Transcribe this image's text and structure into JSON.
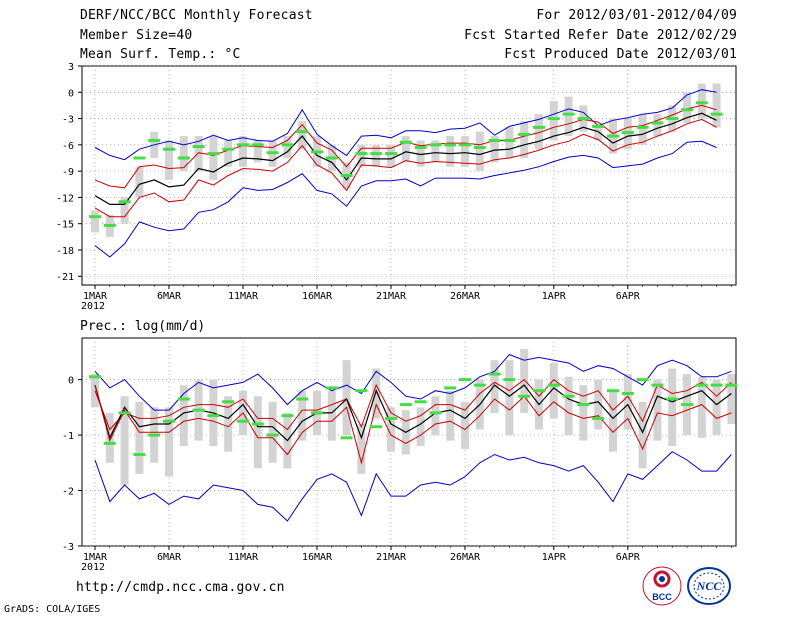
{
  "header": {
    "title": "DERF/NCC/BCC Monthly Forecast",
    "member_size": "Member Size=40",
    "variable": "Mean Surf. Temp.: °C",
    "period": "For 2012/03/01-2012/04/09",
    "start_date": "Fcst Started Refer Date 2012/02/29",
    "produced_date": "Fcst Produced Date 2012/03/01"
  },
  "footer": {
    "url": "http://cmdp.ncc.cma.gov.cn",
    "credit": "GrADS: COLA/IGES"
  },
  "logos": {
    "bcc": "BCC",
    "ncc": "NCC"
  },
  "colors": {
    "max_min": "#0000cc",
    "spread": "#cc0000",
    "mean": "#000000",
    "box": "#d3d3d3",
    "obs": "#44dd44"
  },
  "chart_data": [
    {
      "type": "line",
      "name": "temperature",
      "title": "Mean Surf. Temp.: °C",
      "ylim": [
        -22,
        3
      ],
      "yticks": [
        3,
        0,
        -3,
        -6,
        -9,
        -12,
        -15,
        -18,
        -21
      ],
      "xticks": [
        {
          "day": 1,
          "label": "1MAR"
        },
        {
          "day": 6,
          "label": "6MAR"
        },
        {
          "day": 11,
          "label": "11MAR"
        },
        {
          "day": 16,
          "label": "16MAR"
        },
        {
          "day": 21,
          "label": "21MAR"
        },
        {
          "day": 26,
          "label": "26MAR"
        },
        {
          "day": 32,
          "label": "1APR"
        },
        {
          "day": 37,
          "label": "6APR"
        }
      ],
      "year_label": "2012",
      "series": [
        {
          "name": "max",
          "values": [
            -6.3,
            -7.2,
            -7.7,
            -6.5,
            -6,
            -5.6,
            -6,
            -5.6,
            -4.9,
            -5.5,
            -5.2,
            -5.5,
            -5.6,
            -4.7,
            -2,
            -4.8,
            -6.1,
            -7.2,
            -5,
            -4.9,
            -5.2,
            -4.4,
            -4.4,
            -4.6,
            -4.2,
            -4.1,
            -3.5,
            -4.9,
            -3.9,
            -3.5,
            -3.1,
            -2.5,
            -1.9,
            -2.3,
            -3.8,
            -3.2,
            -2.9,
            -2.5,
            -2.3,
            -1.8,
            -0.3,
            0.3,
            0
          ]
        },
        {
          "name": "spread_upper",
          "values": [
            -10,
            -10.7,
            -10.9,
            -8.5,
            -8.3,
            -8.7,
            -8.6,
            -6.9,
            -7.2,
            -6.6,
            -6.1,
            -6.2,
            -6.3,
            -5.5,
            -3.7,
            -5.8,
            -6.6,
            -8.5,
            -6.4,
            -6.4,
            -6.4,
            -5.7,
            -6.1,
            -5.9,
            -5.8,
            -5.8,
            -6,
            -5.5,
            -5.5,
            -5,
            -4.6,
            -4,
            -3.6,
            -3.1,
            -3.4,
            -4.7,
            -4,
            -3.8,
            -3.2,
            -2.6,
            -1.9,
            -1.5,
            -2
          ],
          "note": "red upper band"
        },
        {
          "name": "mean",
          "values": [
            -11.8,
            -12.8,
            -12.8,
            -10.5,
            -10,
            -10.8,
            -10.6,
            -8.7,
            -9.1,
            -8.1,
            -7.5,
            -7.6,
            -7.8,
            -6.8,
            -5,
            -7.2,
            -8,
            -10,
            -7.5,
            -7.6,
            -7.6,
            -6.8,
            -7.1,
            -6.9,
            -7,
            -6.9,
            -7.1,
            -6.6,
            -6.5,
            -6,
            -5.6,
            -5,
            -4.6,
            -4,
            -4.5,
            -5.8,
            -5,
            -4.8,
            -4.1,
            -3.6,
            -2.9,
            -2.4,
            -3.2
          ]
        },
        {
          "name": "spread_lower",
          "values": [
            -13.2,
            -14.2,
            -14.2,
            -12,
            -11.5,
            -12.5,
            -12.3,
            -10,
            -10.6,
            -9.5,
            -8.7,
            -8.8,
            -9,
            -8,
            -6.1,
            -8.3,
            -9.2,
            -11.2,
            -8.3,
            -8.4,
            -8.6,
            -7.8,
            -8.1,
            -7.9,
            -8,
            -8.1,
            -8.2,
            -7.7,
            -7.5,
            -7.1,
            -6.6,
            -6,
            -5.6,
            -4.8,
            -5.4,
            -6.7,
            -6,
            -5.7,
            -5,
            -4.4,
            -3.6,
            -3.1,
            -4
          ]
        },
        {
          "name": "min",
          "values": [
            -17.5,
            -18.8,
            -17.3,
            -14.8,
            -15.4,
            -15.8,
            -15.6,
            -13.7,
            -13.4,
            -12.5,
            -10.9,
            -11.2,
            -11.1,
            -10.3,
            -9.3,
            -11.2,
            -11.6,
            -13,
            -10.7,
            -10.1,
            -10.1,
            -9.9,
            -10.7,
            -9.8,
            -9.8,
            -9.8,
            -9.9,
            -9.5,
            -9.2,
            -8.9,
            -8.5,
            -7.9,
            -7.4,
            -7.2,
            -7.5,
            -8.6,
            -8.4,
            -8.2,
            -7.5,
            -7,
            -5.7,
            -5.6,
            -6.3
          ]
        }
      ],
      "boxes": {
        "high": [
          -13.5,
          -14,
          -12,
          -8.5,
          -4.5,
          -5.5,
          -5,
          -5,
          -5,
          -5.5,
          -5,
          -5.5,
          -5.5,
          -5,
          -3.3,
          -5,
          -6,
          -8,
          -6,
          -6,
          -6,
          -5,
          -5.5,
          -5.5,
          -5,
          -5,
          -4.5,
          -5,
          -4,
          -3.3,
          -2.5,
          -1,
          -0.5,
          -1.5,
          -4,
          -3,
          -3,
          -2.5,
          -2.5,
          -1.5,
          0,
          1,
          1
        ],
        "low": [
          -16,
          -16.5,
          -15,
          -12,
          -7.5,
          -10,
          -9,
          -9,
          -10,
          -8.5,
          -8.5,
          -8,
          -8.5,
          -7.5,
          -6.5,
          -8.5,
          -9,
          -11,
          -8.5,
          -8.5,
          -8.5,
          -8,
          -8.5,
          -8,
          -8.5,
          -8.5,
          -9,
          -8,
          -7.5,
          -7.5,
          -6.5,
          -5.5,
          -5,
          -4.5,
          -5.5,
          -7,
          -6.5,
          -6,
          -5,
          -4.5,
          -3.5,
          -3,
          -4
        ]
      },
      "obs": [
        -14.2,
        -15.2,
        -12.5,
        -7.5,
        -5.5,
        -6.5,
        -7.5,
        -6.2,
        -7,
        -6.5,
        -6,
        -6,
        -6.9,
        -6,
        -4.5,
        -6.8,
        -7.5,
        -9.5,
        -7,
        -7,
        -7,
        -5.7,
        -6.3,
        -6,
        -6,
        -6,
        -6.3,
        -5.5,
        -5.5,
        -4.8,
        -4,
        -3,
        -2.5,
        -3,
        -3.9,
        -5,
        -4.6,
        -4,
        -3.5,
        -3,
        -2,
        -1.2,
        -2.5
      ]
    },
    {
      "type": "line",
      "name": "precipitation",
      "title": "Prec.: log(mm/d)",
      "ylim": [
        -3,
        0.75
      ],
      "yticks": [
        0,
        -1,
        -2,
        -3
      ],
      "xticks": [
        {
          "day": 1,
          "label": "1MAR"
        },
        {
          "day": 6,
          "label": "6MAR"
        },
        {
          "day": 11,
          "label": "11MAR"
        },
        {
          "day": 16,
          "label": "16MAR"
        },
        {
          "day": 21,
          "label": "21MAR"
        },
        {
          "day": 26,
          "label": "26MAR"
        },
        {
          "day": 32,
          "label": "1APR"
        },
        {
          "day": 37,
          "label": "6APR"
        }
      ],
      "year_label": "2012",
      "series": [
        {
          "name": "max",
          "values": [
            0.15,
            -0.15,
            0,
            -0.3,
            -0.55,
            -0.55,
            -0.25,
            -0.05,
            -0.15,
            -0.1,
            -0.05,
            0.1,
            -0.15,
            -0.45,
            -0.2,
            -0.05,
            -0.2,
            -0.1,
            -0.25,
            0.15,
            -0.05,
            -0.3,
            -0.35,
            -0.2,
            -0.25,
            -0.15,
            0.05,
            0.15,
            0.45,
            0.35,
            0.4,
            0.35,
            0.3,
            0.15,
            0.25,
            0.2,
            0.05,
            -0.1,
            0.25,
            0.35,
            0.25,
            0.05,
            0.05,
            0.15
          ]
        },
        {
          "name": "spread_upper",
          "values": [
            -0.2,
            -0.9,
            -0.6,
            -0.7,
            -0.7,
            -0.65,
            -0.5,
            -0.45,
            -0.45,
            -0.5,
            -0.35,
            -0.7,
            -0.7,
            -0.9,
            -0.55,
            -0.55,
            -0.45,
            -0.35,
            -0.85,
            -0.1,
            -0.6,
            -0.75,
            -0.65,
            -0.45,
            -0.45,
            -0.55,
            -0.25,
            -0.05,
            -0.2,
            0.0,
            -0.3,
            0.0,
            -0.2,
            -0.3,
            -0.2,
            -0.55,
            -0.3,
            -0.75,
            -0.1,
            -0.25,
            -0.2,
            -0.05,
            -0.3,
            -0.05
          ]
        },
        {
          "name": "mean",
          "values": [
            -0.1,
            -1.05,
            -0.5,
            -0.85,
            -0.8,
            -0.8,
            -0.6,
            -0.55,
            -0.6,
            -0.7,
            -0.45,
            -0.85,
            -0.85,
            -1.1,
            -0.75,
            -0.6,
            -0.6,
            -0.35,
            -1.05,
            -0.2,
            -0.8,
            -0.95,
            -0.8,
            -0.6,
            -0.55,
            -0.7,
            -0.45,
            -0.1,
            -0.3,
            -0.1,
            -0.45,
            -0.15,
            -0.35,
            -0.45,
            -0.4,
            -0.7,
            -0.45,
            -0.95,
            -0.3,
            -0.4,
            -0.3,
            -0.2,
            -0.45,
            -0.25
          ]
        },
        {
          "name": "spread_lower",
          "values": [
            -0.1,
            -1.1,
            -0.55,
            -0.95,
            -0.95,
            -0.95,
            -0.75,
            -0.7,
            -0.75,
            -0.85,
            -0.6,
            -1.05,
            -1.05,
            -1.35,
            -0.95,
            -0.75,
            -0.75,
            -0.5,
            -1.5,
            -0.45,
            -1.0,
            -1.15,
            -1.0,
            -0.8,
            -0.75,
            -0.9,
            -0.65,
            -0.35,
            -0.55,
            -0.3,
            -0.65,
            -0.4,
            -0.6,
            -0.7,
            -0.65,
            -0.95,
            -0.7,
            -1.25,
            -0.6,
            -0.65,
            -0.55,
            -0.45,
            -0.7,
            -0.6
          ]
        },
        {
          "name": "min",
          "values": [
            -1.45,
            -2.2,
            -1.9,
            -2.15,
            -2.05,
            -2.25,
            -2.1,
            -2.15,
            -1.9,
            -1.95,
            -2.0,
            -2.25,
            -2.3,
            -2.55,
            -2.15,
            -1.8,
            -1.7,
            -1.85,
            -2.45,
            -1.7,
            -2.1,
            -2.1,
            -1.9,
            -1.85,
            -1.9,
            -1.75,
            -1.5,
            -1.35,
            -1.45,
            -1.4,
            -1.5,
            -1.55,
            -1.65,
            -1.55,
            -1.85,
            -2.2,
            -1.7,
            -1.8,
            -1.55,
            -1.3,
            -1.45,
            -1.65,
            -1.65,
            -1.35
          ]
        }
      ],
      "boxes": {
        "high": [
          0.1,
          -0.6,
          -0.3,
          -0.4,
          -0.5,
          -0.5,
          -0.1,
          0.0,
          0.0,
          -0.3,
          -0.2,
          -0.3,
          -0.4,
          -0.6,
          -0.2,
          -0.2,
          -0.2,
          0.35,
          -0.8,
          0.2,
          -0.5,
          -0.55,
          -0.5,
          -0.3,
          -0.2,
          -0.4,
          0.0,
          0.35,
          0.35,
          0.55,
          0.0,
          0.3,
          0.05,
          -0.1,
          0.0,
          -0.2,
          0.1,
          -0.4,
          0.0,
          0.2,
          0.1,
          0.05,
          0.0,
          0.1
        ],
        "low": [
          -0.5,
          -1.5,
          -1.9,
          -1.7,
          -1.5,
          -1.75,
          -1.2,
          -1.1,
          -1.2,
          -1.3,
          -1.0,
          -1.6,
          -1.5,
          -1.6,
          -1.1,
          -1.0,
          -1.1,
          -1.0,
          -1.7,
          -0.7,
          -1.3,
          -1.35,
          -1.2,
          -1.0,
          -1.1,
          -1.25,
          -0.9,
          -0.6,
          -1.0,
          -0.6,
          -0.9,
          -0.7,
          -1.0,
          -1.1,
          -0.9,
          -1.3,
          -0.9,
          -1.6,
          -1.1,
          -1.2,
          -1.0,
          -1.05,
          -1.0,
          -0.8
        ]
      },
      "obs": [
        0.05,
        -1.15,
        -0.6,
        -1.35,
        -1.0,
        -0.75,
        -0.35,
        -0.55,
        -0.65,
        -0.4,
        -0.75,
        -0.8,
        -1.0,
        -0.65,
        -0.35,
        -0.6,
        -0.15,
        -1.05,
        -0.2,
        -0.85,
        -0.7,
        -0.45,
        -0.4,
        -0.6,
        -0.15,
        0.0,
        -0.1,
        0.1,
        0.0,
        -0.3,
        -0.2,
        -0.1,
        -0.3,
        -0.45,
        -0.7,
        -0.2,
        -0.25,
        0.0,
        -0.1,
        -0.35,
        -0.45,
        -0.1,
        -0.1,
        -0.1
      ]
    }
  ]
}
